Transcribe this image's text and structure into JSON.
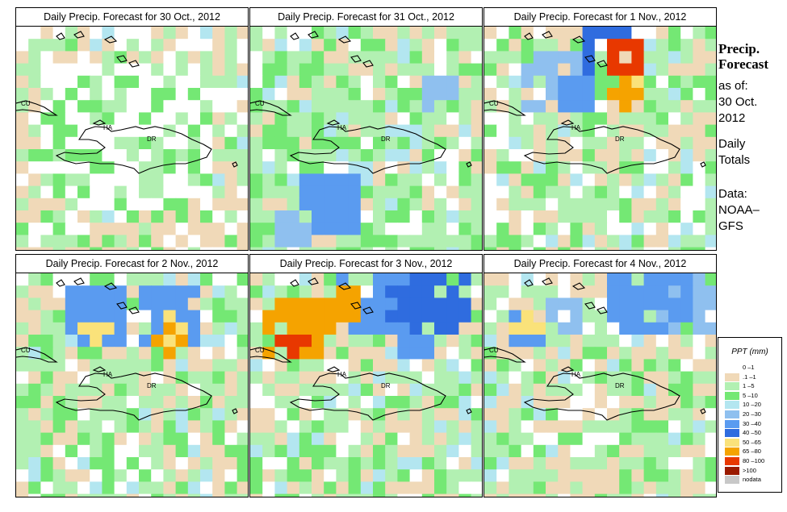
{
  "panels": [
    {
      "title": "Daily Precip. Forecast for  30 Oct., 2012",
      "day": "30 Oct., 2012"
    },
    {
      "title": "Daily Precip. Forecast for  31 Oct., 2012",
      "day": "31 Oct., 2012"
    },
    {
      "title": "Daily Precip. Forecast for  1 Nov., 2012",
      "day": "1 Nov., 2012"
    },
    {
      "title": "Daily Precip. Forecast for  2 Nov., 2012",
      "day": "2 Nov., 2012"
    },
    {
      "title": "Daily Precip. Forecast for  3 Nov., 2012",
      "day": "3 Nov., 2012"
    },
    {
      "title": "Daily Precip. Forecast for  4 Nov., 2012",
      "day": "4 Nov., 2012"
    }
  ],
  "country_labels": {
    "cuba": "CU",
    "haiti": "HA",
    "dominican_republic": "DR"
  },
  "sidebar": {
    "title_line1": "Precip.",
    "title_line2": "Forecast",
    "asof_label": "as of:",
    "asof_date1": "30 Oct.",
    "asof_date2": "2012",
    "totals1": "Daily",
    "totals2": "Totals",
    "data_label": "Data:",
    "data_src1": "NOAA–",
    "data_src2": "GFS"
  },
  "legend": {
    "title": "PPT (mm)",
    "classes": [
      {
        "label": "0 –1",
        "color": "#ffffff"
      },
      {
        "label": ".1 –1",
        "color": "#f0d9b8"
      },
      {
        "label": "1 –5",
        "color": "#b2f0b2"
      },
      {
        "label": "5 –10",
        "color": "#74e874"
      },
      {
        "label": "10 –20",
        "color": "#b3e6f0"
      },
      {
        "label": "20 –30",
        "color": "#8fc0ef"
      },
      {
        "label": "30 –40",
        "color": "#5a9bf0"
      },
      {
        "label": "40 –50",
        "color": "#2f6cdf"
      },
      {
        "label": "50 –65",
        "color": "#fae27a"
      },
      {
        "label": "65 –80",
        "color": "#f5a300"
      },
      {
        "label": "80 –100",
        "color": "#e83800"
      },
      {
        "label": ">100",
        "color": "#9a1a00"
      },
      {
        "label": "nodata",
        "color": "#c8c8c8"
      }
    ]
  }
}
